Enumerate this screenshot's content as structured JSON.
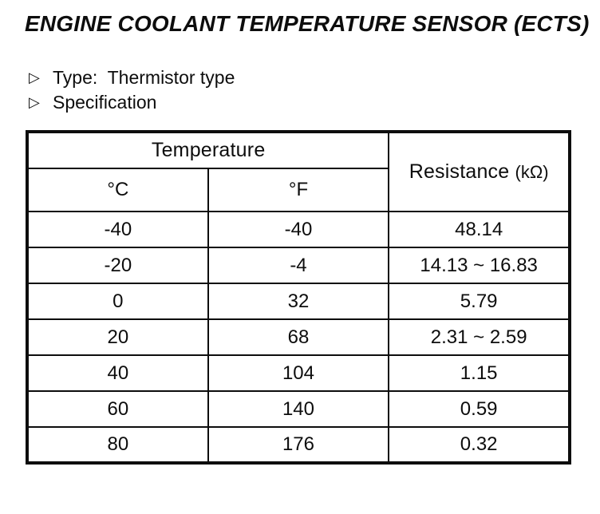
{
  "page": {
    "title": "ENGINE COOLANT TEMPERATURE SENSOR (ECTS)",
    "bullets": [
      {
        "marker": "▷",
        "text": "Type:  Thermistor type"
      },
      {
        "marker": "▷",
        "text": "Specification"
      }
    ]
  },
  "table": {
    "headers": {
      "temperature": "Temperature",
      "resistance_label": "Resistance ",
      "resistance_unit": "(kΩ)",
      "celsius": "°C",
      "fahrenheit": "°F"
    },
    "rows": [
      {
        "c": "-40",
        "f": "-40",
        "r": "48.14"
      },
      {
        "c": "-20",
        "f": "-4",
        "r": "14.13 ~ 16.83"
      },
      {
        "c": "0",
        "f": "32",
        "r": "5.79"
      },
      {
        "c": "20",
        "f": "68",
        "r": "2.31 ~ 2.59"
      },
      {
        "c": "40",
        "f": "104",
        "r": "1.15"
      },
      {
        "c": "60",
        "f": "140",
        "r": "0.59"
      },
      {
        "c": "80",
        "f": "176",
        "r": "0.32"
      }
    ]
  },
  "colors": {
    "ink": "#0d0d0d",
    "paper": "#ffffff"
  }
}
